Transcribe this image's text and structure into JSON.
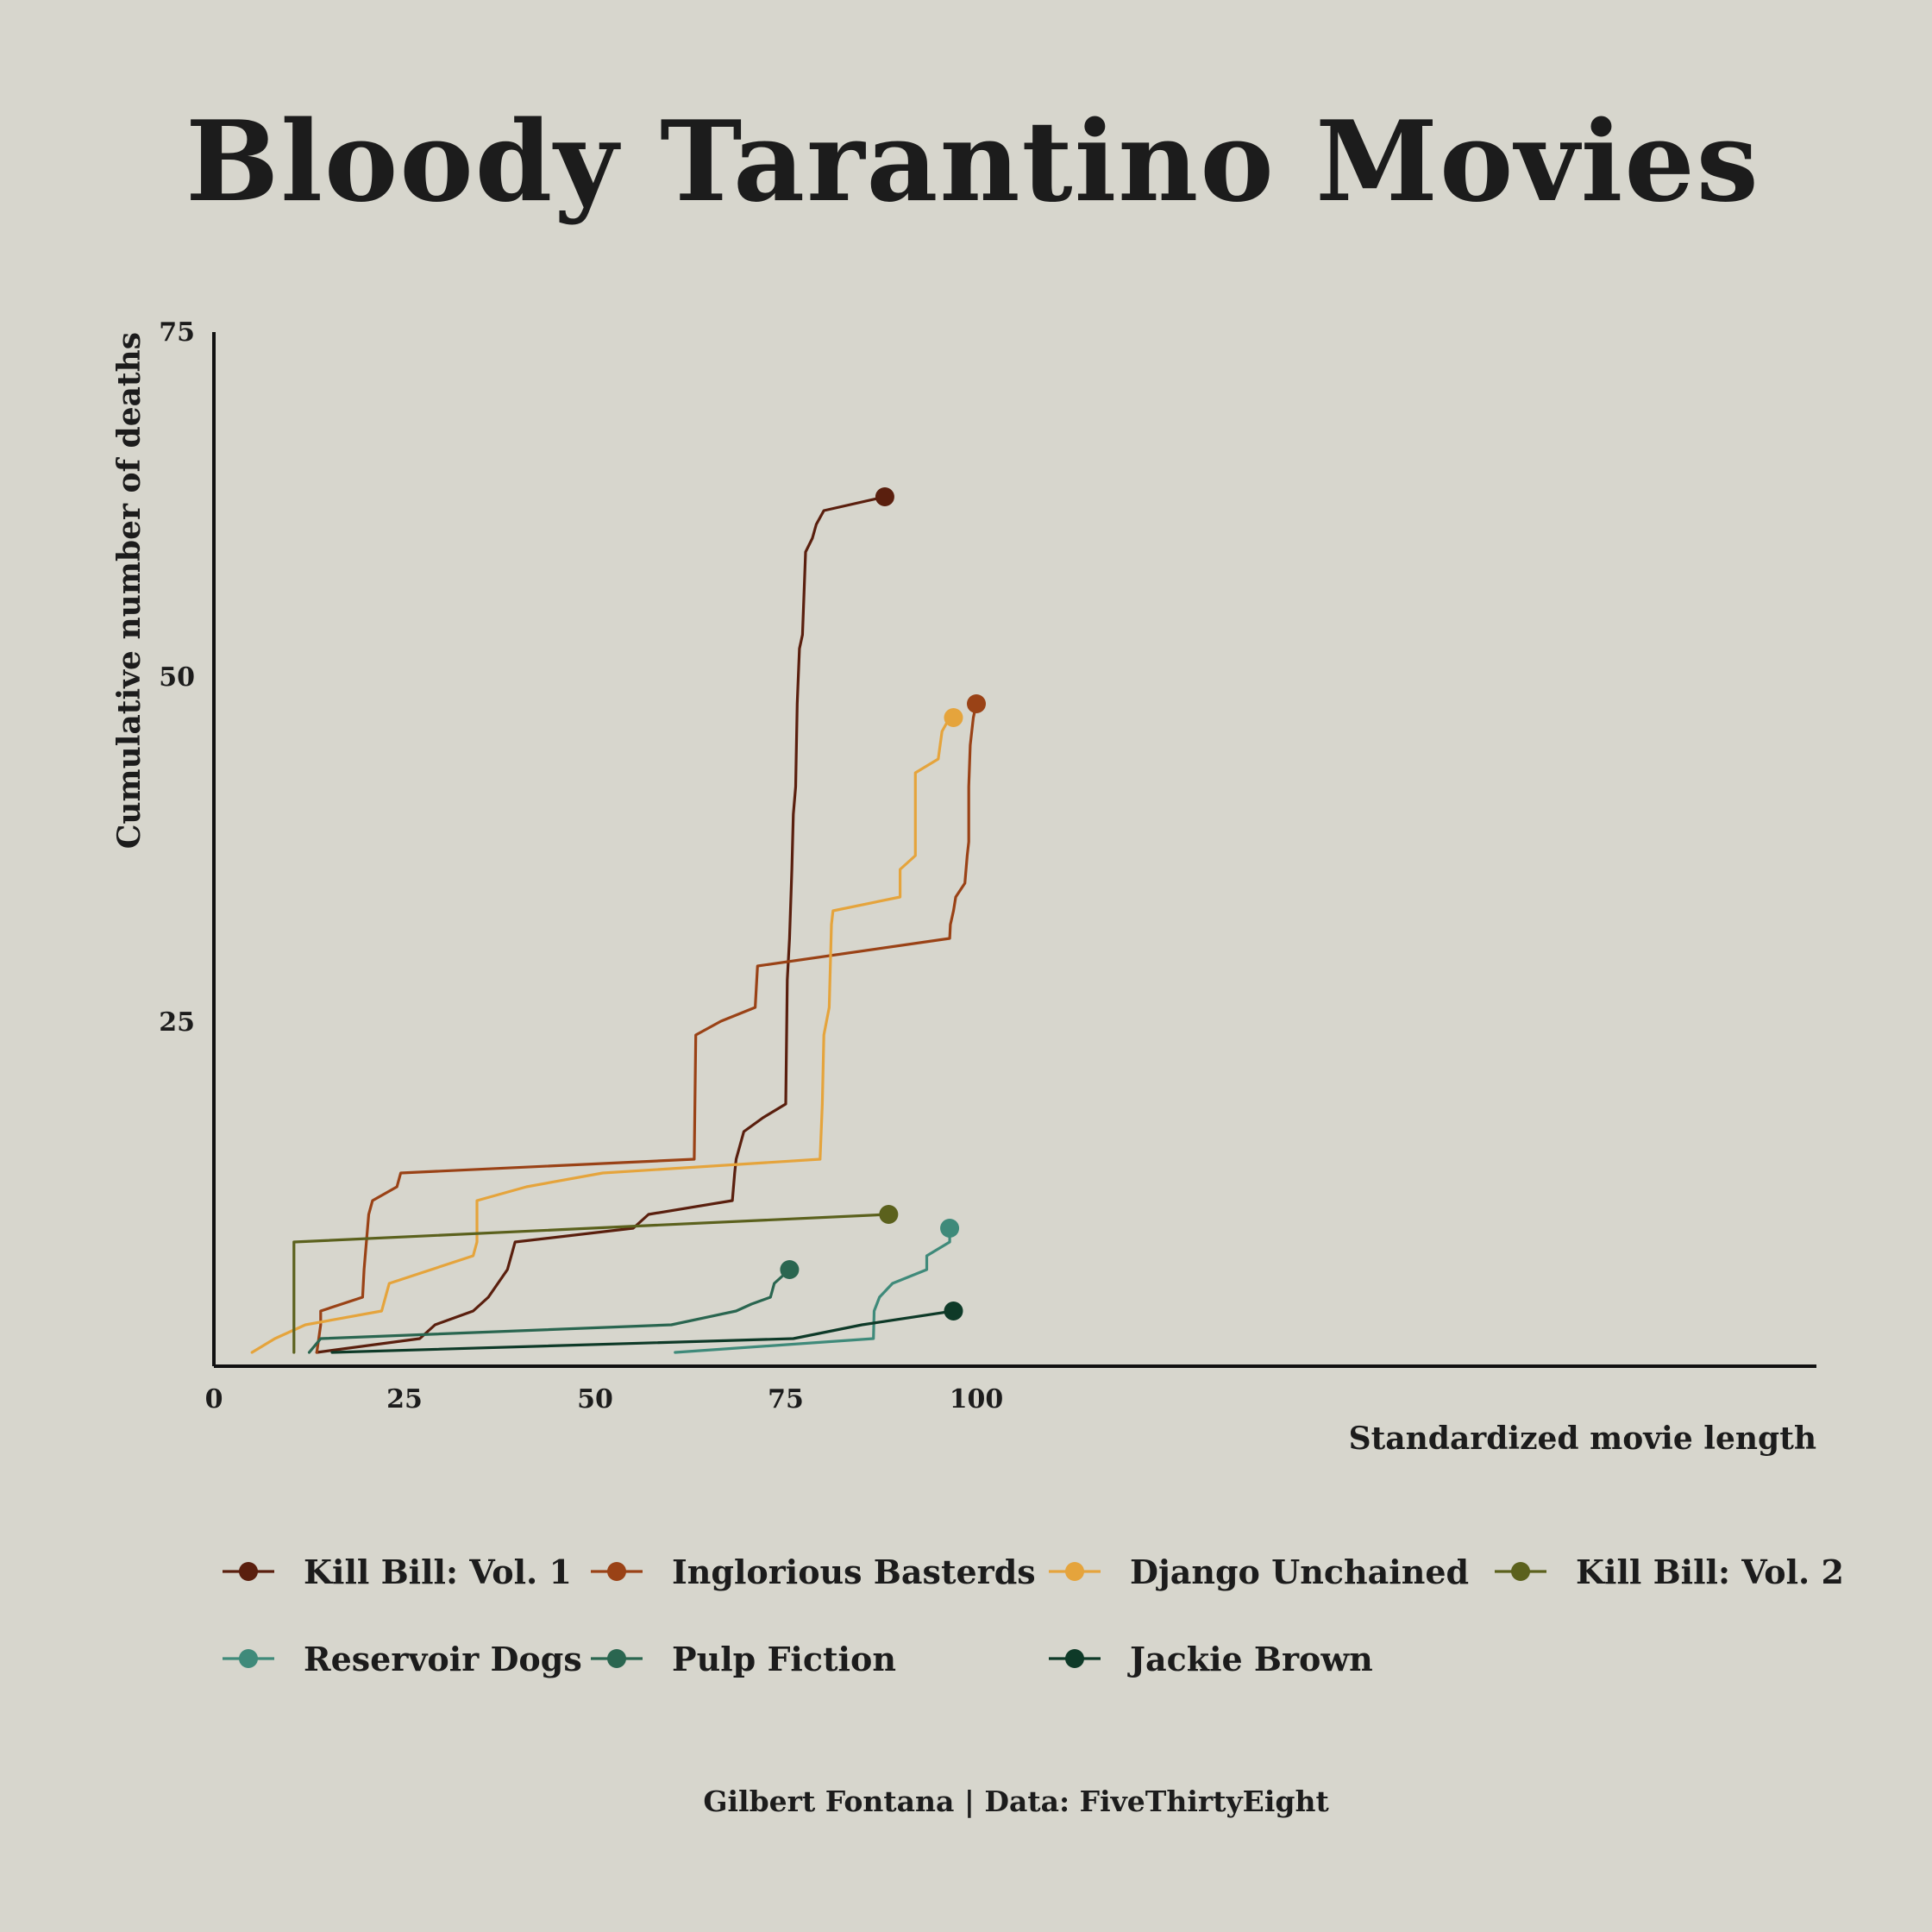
{
  "chart_data": {
    "type": "line",
    "title": "Bloody Tarantino Movies",
    "xlabel": "Standardized movie length",
    "ylabel": "Cumulative number of deaths",
    "xlim": [
      0,
      105
    ],
    "ylim": [
      0,
      75
    ],
    "xticks": [
      "0",
      "25",
      "50",
      "75",
      "100"
    ],
    "yticks": [
      "25",
      "50",
      "75"
    ],
    "grid": false,
    "legend_position": "bottom",
    "caption": "Gilbert Fontana | Data: FiveThirtyEight",
    "series": [
      {
        "name": "Kill Bill: Vol. 1",
        "color": "#5a1f0e",
        "points": [
          [
            13.5,
            1
          ],
          [
            27,
            2
          ],
          [
            29,
            3
          ],
          [
            34,
            4
          ],
          [
            36,
            5
          ],
          [
            38.5,
            7
          ],
          [
            39,
            8
          ],
          [
            39.5,
            9
          ],
          [
            55,
            10
          ],
          [
            57,
            11
          ],
          [
            68,
            12
          ],
          [
            68.3,
            14
          ],
          [
            68.5,
            15
          ],
          [
            69.5,
            17
          ],
          [
            72,
            18
          ],
          [
            75,
            19
          ],
          [
            75.2,
            28
          ],
          [
            75.5,
            31
          ],
          [
            75.8,
            36
          ],
          [
            76,
            40
          ],
          [
            76.3,
            42
          ],
          [
            76.5,
            48
          ],
          [
            76.8,
            52
          ],
          [
            77.2,
            53
          ],
          [
            77.6,
            59
          ],
          [
            78.5,
            60
          ],
          [
            79,
            61
          ],
          [
            80,
            62
          ],
          [
            88,
            63
          ]
        ]
      },
      {
        "name": "Inglorious Basterds",
        "color": "#9a4216",
        "points": [
          [
            13.5,
            1
          ],
          [
            14,
            3
          ],
          [
            14,
            4
          ],
          [
            19.5,
            5
          ],
          [
            19.7,
            7
          ],
          [
            20,
            9
          ],
          [
            20.3,
            11
          ],
          [
            20.8,
            12
          ],
          [
            24,
            13
          ],
          [
            24.5,
            14
          ],
          [
            63,
            15
          ],
          [
            63.2,
            24
          ],
          [
            66.5,
            25
          ],
          [
            71,
            26
          ],
          [
            71.3,
            29
          ],
          [
            96.5,
            31
          ],
          [
            96.6,
            32
          ],
          [
            97,
            33
          ],
          [
            97.3,
            34
          ],
          [
            98.5,
            35
          ],
          [
            98.8,
            37
          ],
          [
            99,
            38
          ],
          [
            99,
            42
          ],
          [
            99.2,
            45
          ],
          [
            99.6,
            47
          ],
          [
            100,
            48
          ]
        ]
      },
      {
        "name": "Django Unchained",
        "color": "#e5a43c",
        "points": [
          [
            5,
            1
          ],
          [
            8,
            2
          ],
          [
            12,
            3
          ],
          [
            22,
            4
          ],
          [
            22.5,
            5
          ],
          [
            23,
            6
          ],
          [
            34,
            8
          ],
          [
            34.5,
            9
          ],
          [
            34.5,
            12
          ],
          [
            41,
            13
          ],
          [
            51,
            14
          ],
          [
            79.5,
            15
          ],
          [
            79.8,
            19
          ],
          [
            80,
            24
          ],
          [
            80.7,
            26
          ],
          [
            81,
            32
          ],
          [
            81.2,
            33
          ],
          [
            90,
            34
          ],
          [
            90,
            36
          ],
          [
            92,
            37
          ],
          [
            92,
            43
          ],
          [
            95,
            44
          ],
          [
            95.5,
            46
          ],
          [
            96.5,
            47
          ],
          [
            97,
            47
          ]
        ]
      },
      {
        "name": "Kill Bill: Vol. 2",
        "color": "#5b611d",
        "points": [
          [
            10.5,
            1
          ],
          [
            10.5,
            9
          ],
          [
            88.5,
            11
          ]
        ]
      },
      {
        "name": "Reservoir Dogs",
        "color": "#3f8a7a",
        "points": [
          [
            60.5,
            1
          ],
          [
            86.5,
            2
          ],
          [
            86.6,
            4
          ],
          [
            87.3,
            5
          ],
          [
            89,
            6
          ],
          [
            93.5,
            7
          ],
          [
            93.5,
            8
          ],
          [
            96.5,
            9
          ],
          [
            96.5,
            10
          ]
        ]
      },
      {
        "name": "Pulp Fiction",
        "color": "#2a6650",
        "points": [
          [
            12.5,
            1
          ],
          [
            14,
            2
          ],
          [
            60,
            3
          ],
          [
            68.5,
            4
          ],
          [
            70.5,
            4.5
          ],
          [
            73,
            5
          ],
          [
            73.5,
            6
          ],
          [
            75.5,
            7
          ]
        ]
      },
      {
        "name": "Jackie Brown",
        "color": "#0e3a28",
        "points": [
          [
            15.5,
            1
          ],
          [
            76,
            2
          ],
          [
            85,
            3
          ],
          [
            97,
            4
          ]
        ]
      }
    ]
  }
}
